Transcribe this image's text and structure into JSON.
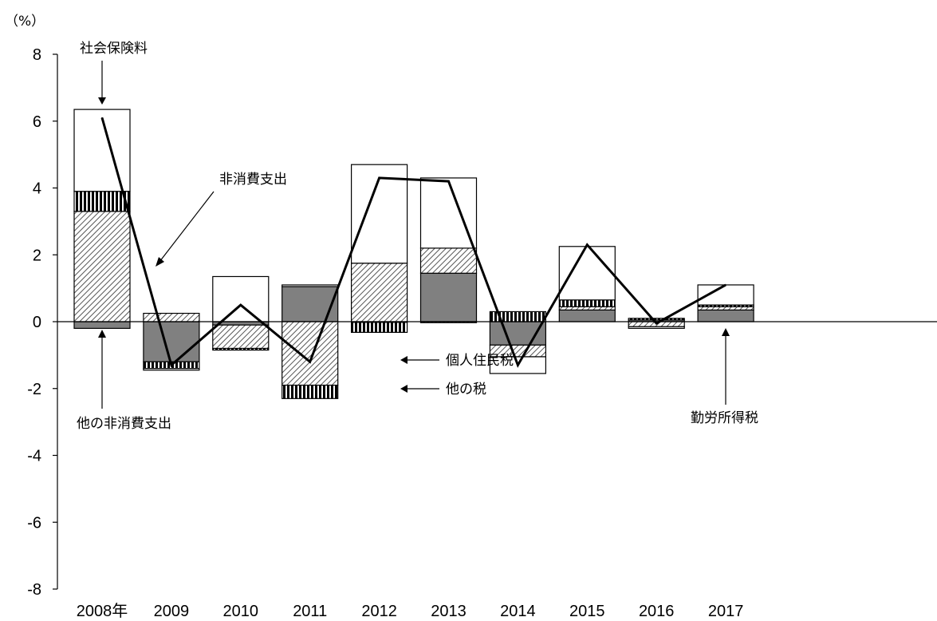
{
  "chart_data": {
    "type": "bar",
    "subtype": "stacked-bar-with-line",
    "unit_label": "（%）",
    "categories": [
      "2008年",
      "2009",
      "2010",
      "2011",
      "2012",
      "2013",
      "2014",
      "2015",
      "2016",
      "2017"
    ],
    "ylim": [
      -8,
      8
    ],
    "yticks": [
      8,
      6,
      4,
      2,
      0,
      -2,
      -4,
      -6,
      -8
    ],
    "series": [
      {
        "name": "他の非消費支出",
        "kind": "bar",
        "fill": "solid-gray",
        "values": [
          -0.2,
          -1.2,
          -0.1,
          1.05,
          -0.02,
          1.45,
          -0.7,
          0.35,
          0.05,
          0.35
        ]
      },
      {
        "name": "個人住民税",
        "kind": "bar",
        "fill": "diagonal-hatch",
        "values": [
          3.3,
          0.25,
          -0.7,
          -1.9,
          1.75,
          0.75,
          -0.35,
          0.1,
          -0.15,
          0.1
        ]
      },
      {
        "name": "他の税",
        "kind": "bar",
        "fill": "vertical-stripes",
        "values": [
          0.6,
          -0.2,
          -0.05,
          -0.4,
          -0.3,
          -0.03,
          0.3,
          0.2,
          0.05,
          0.05
        ]
      },
      {
        "name": "勤労所得税",
        "kind": "bar",
        "fill": "solid-gray",
        "values": [
          0.0,
          0.0,
          0.0,
          0.0,
          0.0,
          0.0,
          0.0,
          0.0,
          0.0,
          0.0
        ]
      },
      {
        "name": "社会保険料",
        "kind": "bar",
        "fill": "white",
        "values": [
          2.45,
          -0.05,
          1.35,
          0.05,
          2.95,
          2.1,
          -0.5,
          1.6,
          -0.05,
          0.6
        ]
      },
      {
        "name": "非消費支出",
        "kind": "line",
        "values": [
          6.1,
          -1.3,
          0.5,
          -1.2,
          4.3,
          4.2,
          -1.3,
          2.3,
          -0.05,
          1.1
        ]
      }
    ],
    "annotations": [
      {
        "text": "社会保険料"
      },
      {
        "text": "非消費支出"
      },
      {
        "text": "他の非消費支出"
      },
      {
        "text": "個人住民税"
      },
      {
        "text": "他の税"
      },
      {
        "text": "勤労所得税"
      }
    ],
    "grid": false,
    "legend": "none (inline annotations)",
    "colors": {
      "gray": "#808080",
      "line": "#000000",
      "axis": "#000000"
    }
  }
}
